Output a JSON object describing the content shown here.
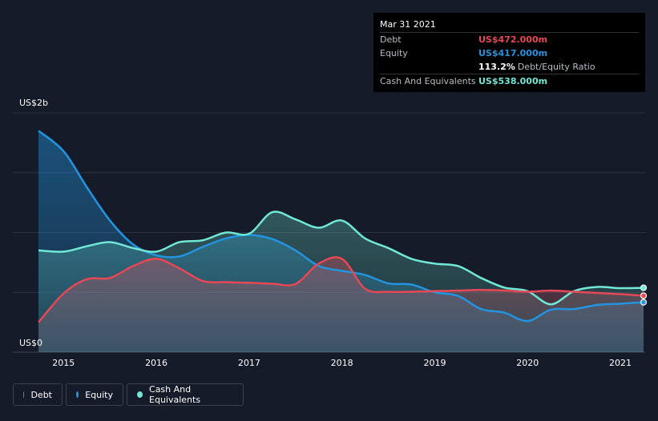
{
  "tooltip": {
    "date": "Mar 31 2021",
    "debt_label": "Debt",
    "debt_value": "US$472.000m",
    "equity_label": "Equity",
    "equity_value": "US$417.000m",
    "ratio_value": "113.2%",
    "ratio_label": "Debt/Equity Ratio",
    "cash_label": "Cash And Equivalents",
    "cash_value": "US$538.000m"
  },
  "legend": [
    {
      "label": "Debt",
      "color": "#e84855"
    },
    {
      "label": "Equity",
      "color": "#2394df"
    },
    {
      "label": "Cash And Equivalents",
      "color": "#71e7d6"
    }
  ],
  "chart_data": {
    "type": "area",
    "y_axis_labels": [
      "US$2b",
      "US$0"
    ],
    "x_tick_labels": [
      "2015",
      "2016",
      "2017",
      "2018",
      "2019",
      "2020",
      "2021"
    ],
    "xlim": [
      2014.73,
      2021.25
    ],
    "ylim": [
      0,
      2000
    ],
    "grid": true,
    "legend_position": "bottom-left",
    "units": "US$ millions",
    "series": [
      {
        "name": "Debt",
        "color": "#e84855",
        "points": [
          [
            2014.73,
            250
          ],
          [
            2015.0,
            490
          ],
          [
            2015.25,
            610
          ],
          [
            2015.5,
            620
          ],
          [
            2015.75,
            720
          ],
          [
            2016.0,
            780
          ],
          [
            2016.25,
            700
          ],
          [
            2016.5,
            595
          ],
          [
            2016.75,
            585
          ],
          [
            2017.0,
            580
          ],
          [
            2017.25,
            572
          ],
          [
            2017.5,
            570
          ],
          [
            2017.75,
            740
          ],
          [
            2018.0,
            780
          ],
          [
            2018.25,
            530
          ],
          [
            2018.5,
            505
          ],
          [
            2018.75,
            505
          ],
          [
            2019.0,
            510
          ],
          [
            2019.25,
            515
          ],
          [
            2019.5,
            520
          ],
          [
            2019.75,
            515
          ],
          [
            2020.0,
            505
          ],
          [
            2020.25,
            515
          ],
          [
            2020.5,
            505
          ],
          [
            2020.75,
            495
          ],
          [
            2021.0,
            485
          ],
          [
            2021.25,
            472
          ]
        ]
      },
      {
        "name": "Equity",
        "color": "#2394df",
        "points": [
          [
            2014.73,
            1850
          ],
          [
            2015.0,
            1680
          ],
          [
            2015.25,
            1380
          ],
          [
            2015.5,
            1100
          ],
          [
            2015.75,
            900
          ],
          [
            2016.0,
            810
          ],
          [
            2016.25,
            800
          ],
          [
            2016.5,
            880
          ],
          [
            2016.75,
            950
          ],
          [
            2017.0,
            980
          ],
          [
            2017.25,
            945
          ],
          [
            2017.5,
            850
          ],
          [
            2017.75,
            720
          ],
          [
            2018.0,
            680
          ],
          [
            2018.25,
            645
          ],
          [
            2018.5,
            575
          ],
          [
            2018.75,
            565
          ],
          [
            2019.0,
            500
          ],
          [
            2019.25,
            470
          ],
          [
            2019.5,
            360
          ],
          [
            2019.75,
            330
          ],
          [
            2020.0,
            260
          ],
          [
            2020.25,
            355
          ],
          [
            2020.5,
            360
          ],
          [
            2020.75,
            395
          ],
          [
            2021.0,
            405
          ],
          [
            2021.25,
            417
          ]
        ]
      },
      {
        "name": "Cash And Equivalents",
        "color": "#71e7d6",
        "points": [
          [
            2014.73,
            850
          ],
          [
            2015.0,
            840
          ],
          [
            2015.25,
            885
          ],
          [
            2015.5,
            920
          ],
          [
            2015.75,
            870
          ],
          [
            2016.0,
            840
          ],
          [
            2016.25,
            920
          ],
          [
            2016.5,
            935
          ],
          [
            2016.75,
            1000
          ],
          [
            2017.0,
            990
          ],
          [
            2017.25,
            1170
          ],
          [
            2017.5,
            1110
          ],
          [
            2017.75,
            1040
          ],
          [
            2018.0,
            1100
          ],
          [
            2018.25,
            950
          ],
          [
            2018.5,
            870
          ],
          [
            2018.75,
            780
          ],
          [
            2019.0,
            740
          ],
          [
            2019.25,
            720
          ],
          [
            2019.5,
            620
          ],
          [
            2019.75,
            540
          ],
          [
            2020.0,
            510
          ],
          [
            2020.25,
            400
          ],
          [
            2020.5,
            510
          ],
          [
            2020.75,
            545
          ],
          [
            2021.0,
            535
          ],
          [
            2021.25,
            538
          ]
        ]
      }
    ]
  }
}
